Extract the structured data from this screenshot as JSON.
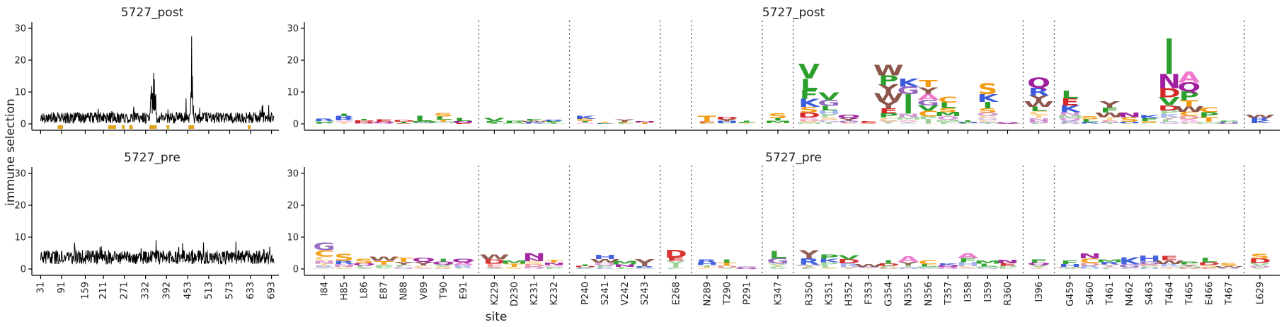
{
  "chart_data": {
    "type": "logo",
    "ylabel": "immune selection",
    "xlabel": "site",
    "ylim": [
      0,
      32
    ],
    "yticks": [
      0,
      10,
      20,
      30
    ],
    "line_xticks": [
      "31",
      "91",
      "159",
      "211",
      "271",
      "332",
      "392",
      "453",
      "513",
      "573",
      "633",
      "693"
    ],
    "panels": [
      {
        "title": "5727_post",
        "line_peaks": [
          {
            "site": 355,
            "value": 16
          },
          {
            "site": 357,
            "value": 14
          },
          {
            "site": 349,
            "value": 12
          },
          {
            "site": 464,
            "value": 27.5
          },
          {
            "site": 466,
            "value": 15
          },
          {
            "site": 448,
            "value": 8
          }
        ],
        "highlight_groups": [
          {
            "start": 84,
            "end": 91
          },
          {
            "start": 229,
            "end": 232
          },
          {
            "start": 240,
            "end": 243
          },
          {
            "start": 268,
            "end": 268
          },
          {
            "start": 289,
            "end": 291
          },
          {
            "start": 347,
            "end": 360
          },
          {
            "start": 396,
            "end": 396
          },
          {
            "start": 459,
            "end": 467
          },
          {
            "start": 629,
            "end": 629
          }
        ],
        "logo_heights": [
          1.5,
          3.2,
          1.6,
          1.4,
          1.2,
          2.6,
          3.4,
          1.8,
          1.8,
          1.0,
          1.5,
          1.4,
          2.6,
          0.5,
          1.3,
          0.9,
          0,
          2.6,
          2.2,
          1.0,
          3.4,
          18.7,
          9.8,
          2.8,
          0.8,
          18.5,
          14.2,
          13.6,
          8.5,
          1.0,
          12.8,
          0.5,
          14.5,
          10.5,
          2.4,
          7.0,
          3.6,
          2.8,
          26.7,
          16.5,
          5.2,
          1.0,
          2.9
        ]
      },
      {
        "title": "5727_pre",
        "line_peaks": [
          {
            "site": 128,
            "value": 8.3
          },
          {
            "site": 205,
            "value": 7.1
          },
          {
            "site": 438,
            "value": 8.1
          },
          {
            "site": 688,
            "value": 7.0
          }
        ],
        "highlight_groups": [],
        "logo_heights": [
          8.3,
          4.6,
          3.2,
          3.8,
          3.4,
          3.5,
          3.2,
          3.3,
          4.6,
          2.7,
          5.0,
          2.8,
          1.4,
          4.4,
          2.6,
          3.0,
          6.0,
          3.0,
          3.1,
          0.7,
          5.6,
          6.0,
          4.6,
          4.3,
          1.5,
          2.9,
          4.0,
          2.8,
          1.8,
          5.0,
          2.6,
          2.8,
          3.0,
          2.7,
          4.8,
          3.0,
          3.5,
          4.1,
          4.0,
          2.3,
          3.6,
          1.9,
          4.8
        ]
      }
    ],
    "logo_sites": [
      "I84",
      "H85",
      "L86",
      "E87",
      "N88",
      "V89",
      "T90",
      "E91",
      "K229",
      "D230",
      "K231",
      "K232",
      "P240",
      "S241",
      "V242",
      "S243",
      "E268",
      "N289",
      "T290",
      "P291",
      "K347",
      "R350",
      "K351",
      "H352",
      "F353",
      "G354",
      "N355",
      "N356",
      "T357",
      "I358",
      "I359",
      "R360",
      "I396",
      "G459",
      "S460",
      "T461",
      "N462",
      "S463",
      "T464",
      "T465",
      "E466",
      "T467",
      "L629"
    ],
    "logo_group_sizes": [
      8,
      4,
      4,
      1,
      3,
      1,
      11,
      1,
      9,
      1
    ],
    "colors": {
      "line": "#000000",
      "highlight": "#e0a317",
      "divider": "#555555"
    }
  }
}
